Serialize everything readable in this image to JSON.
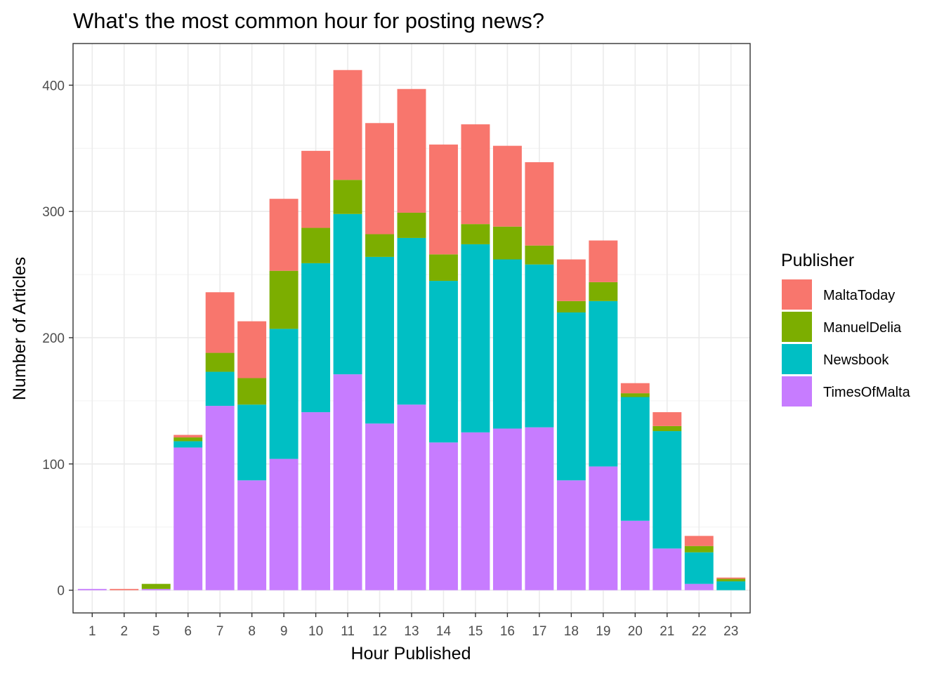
{
  "chart_data": {
    "type": "bar",
    "stacked": true,
    "title": "What's the most common hour for posting news?",
    "xlabel": "Hour Published",
    "ylabel": "Number of Articles",
    "categories": [
      "1",
      "2",
      "5",
      "6",
      "7",
      "8",
      "9",
      "10",
      "11",
      "12",
      "13",
      "14",
      "15",
      "16",
      "17",
      "18",
      "19",
      "20",
      "21",
      "22",
      "23"
    ],
    "ylim": [
      -18,
      433
    ],
    "yticks": [
      0,
      100,
      200,
      300,
      400
    ],
    "grid": true,
    "legend": {
      "title": "Publisher",
      "position": "right"
    },
    "series": [
      {
        "name": "TimesOfMalta",
        "color": "#C77CFF",
        "values": [
          1,
          0,
          1,
          113,
          146,
          87,
          104,
          141,
          171,
          132,
          147,
          117,
          125,
          128,
          129,
          87,
          98,
          55,
          33,
          5,
          0
        ]
      },
      {
        "name": "Newsbook",
        "color": "#00BFC4",
        "values": [
          0,
          0,
          0,
          5,
          27,
          60,
          103,
          118,
          127,
          132,
          132,
          128,
          149,
          134,
          129,
          133,
          131,
          98,
          93,
          25,
          7
        ]
      },
      {
        "name": "ManuelDelia",
        "color": "#7CAE00",
        "values": [
          0,
          0,
          4,
          3,
          15,
          21,
          46,
          28,
          27,
          18,
          20,
          21,
          16,
          26,
          15,
          9,
          15,
          3,
          4,
          5,
          2
        ]
      },
      {
        "name": "MaltaToday",
        "color": "#F8766D",
        "values": [
          0,
          1,
          0,
          2,
          48,
          45,
          57,
          61,
          87,
          88,
          98,
          87,
          79,
          64,
          66,
          33,
          33,
          8,
          11,
          8,
          1
        ]
      }
    ],
    "legend_order": [
      "MaltaToday",
      "ManuelDelia",
      "Newsbook",
      "TimesOfMalta"
    ]
  }
}
